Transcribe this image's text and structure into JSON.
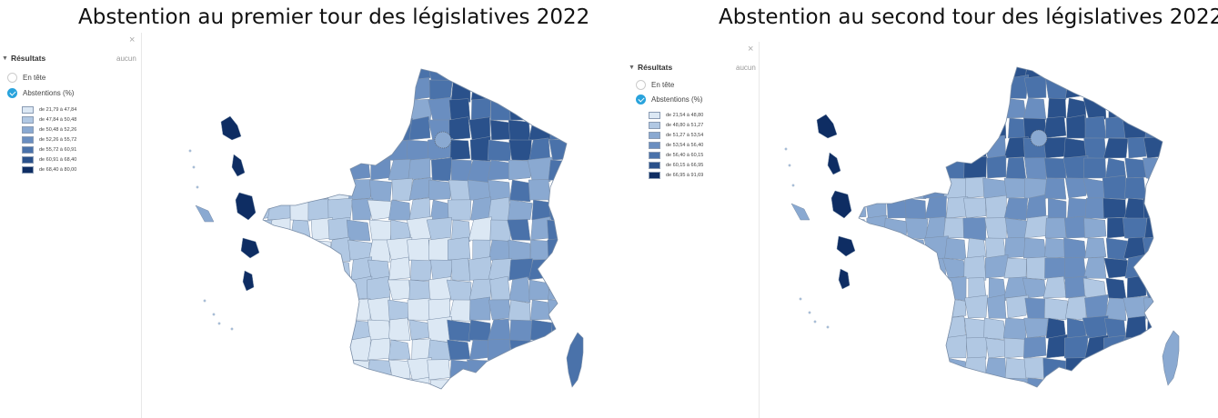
{
  "panels": [
    {
      "title": "Abstention au premier tour des législatives 2022",
      "sidebar": {
        "close_glyph": "×",
        "results_label": "Résultats",
        "clear_label": "aucun",
        "options": [
          {
            "label": "En tête",
            "checked": false
          },
          {
            "label": "Abstentions (%)",
            "checked": true
          }
        ],
        "legend": [
          {
            "label": "de 21,79 à 47,84",
            "color": "#dce8f4"
          },
          {
            "label": "de 47,84 à 50,48",
            "color": "#b1c8e3"
          },
          {
            "label": "de 50,48 à 52,26",
            "color": "#8aa9d1"
          },
          {
            "label": "de 52,26 à 55,72",
            "color": "#6a8ec0"
          },
          {
            "label": "de 55,72 à 60,91",
            "color": "#4a72aa"
          },
          {
            "label": "de 60,91 à 68,40",
            "color": "#2a518b"
          },
          {
            "label": "de 68,40 à 80,00",
            "color": "#0e2d63"
          }
        ]
      }
    },
    {
      "title": "Abstention au second tour des législatives 2022",
      "sidebar": {
        "close_glyph": "×",
        "results_label": "Résultats",
        "clear_label": "aucun",
        "options": [
          {
            "label": "En tête",
            "checked": false
          },
          {
            "label": "Abstentions (%)",
            "checked": true
          }
        ],
        "legend": [
          {
            "label": "de 21,54 à 48,80",
            "color": "#dce8f4"
          },
          {
            "label": "de 48,80 à 51,27",
            "color": "#b1c8e3"
          },
          {
            "label": "de 51,27 à 53,54",
            "color": "#8aa9d1"
          },
          {
            "label": "de 53,54 à 56,40",
            "color": "#6a8ec0"
          },
          {
            "label": "de 56,40 à 60,15",
            "color": "#4a72aa"
          },
          {
            "label": "de 60,15 à 66,95",
            "color": "#2a518b"
          },
          {
            "label": "de 66,95 à 91,69",
            "color": "#0e2d63"
          }
        ]
      }
    }
  ],
  "map_colors": {
    "light": "#dce8f4",
    "pale": "#b1c8e3",
    "mid": "#8aa9d1",
    "midstrong": "#6a8ec0",
    "strong": "#4a72aa",
    "dark": "#2a518b",
    "darkest": "#0e2d63",
    "border": "#7a8ea8"
  }
}
